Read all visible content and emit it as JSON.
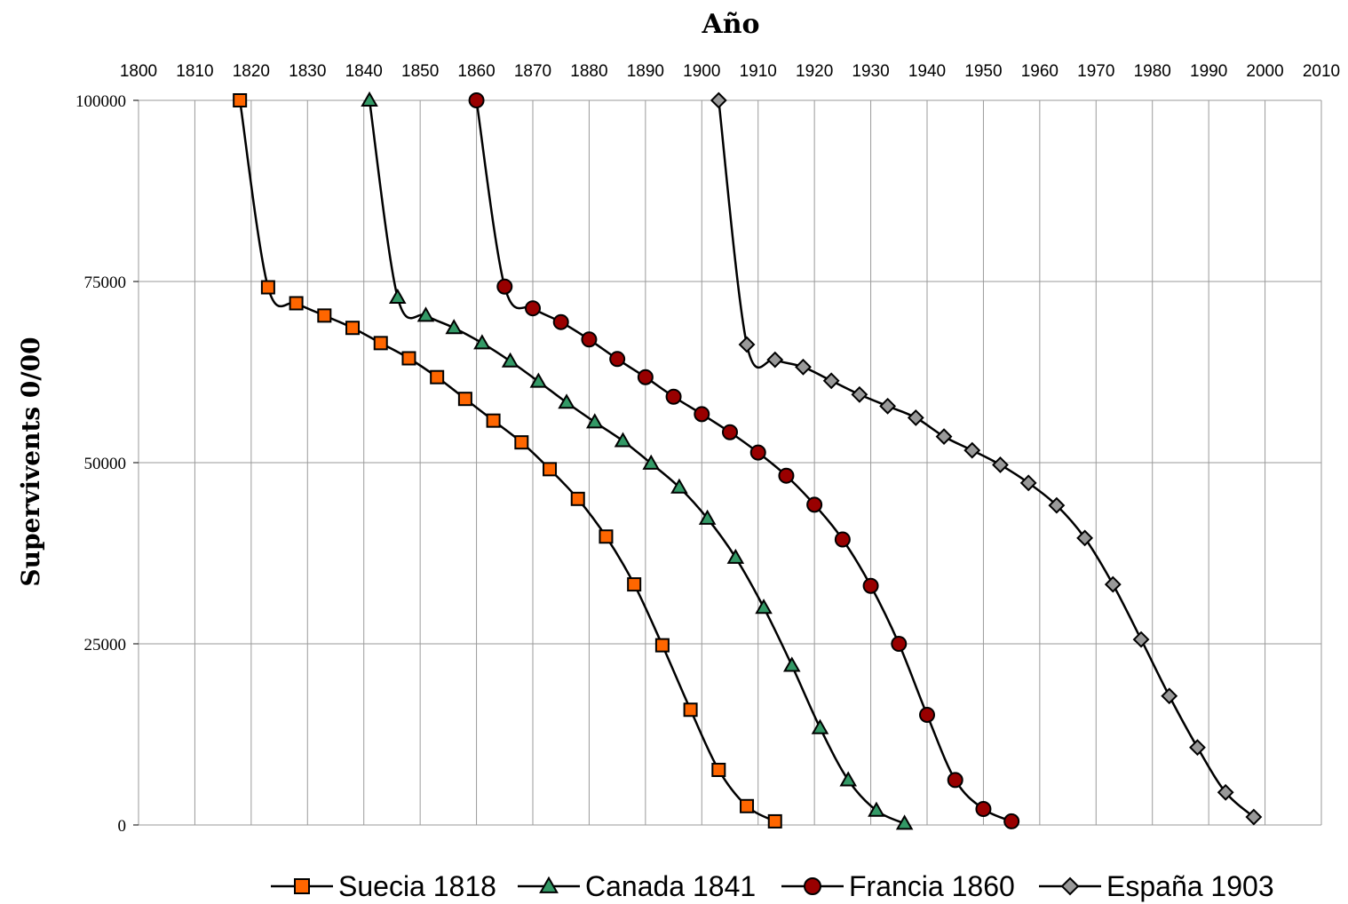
{
  "chart_data": {
    "type": "line",
    "title": "Año",
    "xlabel": "",
    "ylabel": "Supervivents 0/00",
    "xlim": [
      1800,
      2010
    ],
    "ylim": [
      0,
      100000
    ],
    "x_ticks": [
      1800,
      1810,
      1820,
      1830,
      1840,
      1850,
      1860,
      1870,
      1880,
      1890,
      1900,
      1910,
      1920,
      1930,
      1940,
      1950,
      1960,
      1970,
      1980,
      1990,
      2000,
      2010
    ],
    "y_ticks": [
      0,
      25000,
      50000,
      75000,
      100000
    ],
    "x_axis_position": "top",
    "grid": true,
    "legend_position": "bottom",
    "series": [
      {
        "name": "Suecia 1818",
        "marker": "square",
        "color": "#ff6600",
        "x": [
          1818,
          1823,
          1828,
          1833,
          1838,
          1843,
          1848,
          1853,
          1858,
          1863,
          1868,
          1873,
          1878,
          1883,
          1888,
          1893,
          1898,
          1903,
          1908,
          1913
        ],
        "y": [
          100000,
          74200,
          72000,
          70300,
          68600,
          66500,
          64400,
          61800,
          58800,
          55800,
          52800,
          49100,
          45000,
          39800,
          33200,
          24800,
          15900,
          7600,
          2600,
          500
        ]
      },
      {
        "name": "Canada 1841",
        "marker": "triangle",
        "color": "#339966",
        "x": [
          1841,
          1846,
          1851,
          1856,
          1861,
          1866,
          1871,
          1876,
          1881,
          1886,
          1891,
          1896,
          1901,
          1906,
          1911,
          1916,
          1921,
          1926,
          1931,
          1936
        ],
        "y": [
          100000,
          72800,
          70300,
          68600,
          66500,
          64000,
          61200,
          58300,
          55600,
          53000,
          49900,
          46600,
          42300,
          36900,
          30000,
          22000,
          13400,
          6200,
          2000,
          200
        ]
      },
      {
        "name": "Francia 1860",
        "marker": "circle",
        "color": "#990000",
        "x": [
          1860,
          1865,
          1870,
          1875,
          1880,
          1885,
          1890,
          1895,
          1900,
          1905,
          1910,
          1915,
          1920,
          1925,
          1930,
          1935,
          1940,
          1945,
          1950,
          1955
        ],
        "y": [
          100000,
          74300,
          71300,
          69400,
          67000,
          64300,
          61800,
          59100,
          56700,
          54200,
          51400,
          48200,
          44200,
          39400,
          33000,
          25000,
          15200,
          6200,
          2200,
          500
        ]
      },
      {
        "name": "España 1903",
        "marker": "diamond",
        "color": "#999999",
        "x": [
          1903,
          1908,
          1913,
          1918,
          1923,
          1928,
          1933,
          1938,
          1943,
          1948,
          1953,
          1958,
          1963,
          1968,
          1973,
          1978,
          1983,
          1988,
          1993,
          1998
        ],
        "y": [
          100000,
          66300,
          64200,
          63200,
          61300,
          59400,
          57800,
          56200,
          53600,
          51700,
          49700,
          47200,
          44100,
          39600,
          33200,
          25600,
          17800,
          10700,
          4500,
          1100
        ]
      }
    ]
  }
}
